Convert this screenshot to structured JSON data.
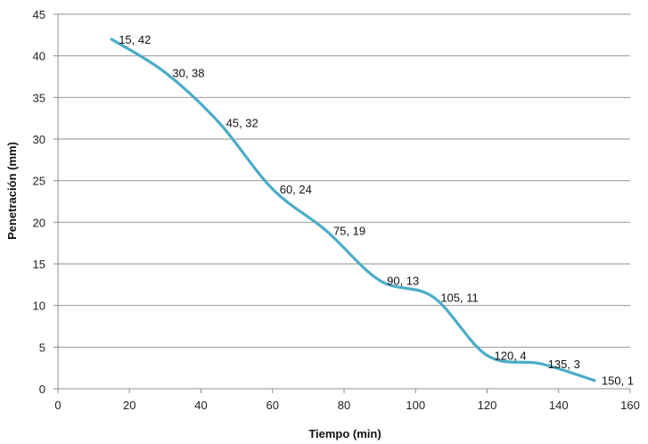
{
  "chart_data": {
    "type": "line",
    "title": "",
    "xlabel": "Tiempo (min)",
    "ylabel": "Penetración (mm)",
    "xlim": [
      0,
      160
    ],
    "ylim": [
      0,
      45
    ],
    "x_ticks": [
      0,
      20,
      40,
      60,
      80,
      100,
      120,
      140,
      160
    ],
    "y_ticks": [
      0,
      5,
      10,
      15,
      20,
      25,
      30,
      35,
      40,
      45
    ],
    "grid": "horizontal",
    "legend": "none",
    "smooth": true,
    "series": [
      {
        "color": "#4bacc6",
        "x": [
          15,
          30,
          45,
          60,
          75,
          90,
          105,
          120,
          135,
          150
        ],
        "y": [
          42,
          38,
          32,
          24,
          19,
          13,
          11,
          4,
          3,
          1
        ],
        "labels": [
          "15, 42",
          "30, 38",
          "45, 32",
          "60, 24",
          "75, 19",
          "90, 13",
          "105, 11",
          "120, 4",
          "135, 3",
          "150, 1"
        ]
      }
    ]
  }
}
